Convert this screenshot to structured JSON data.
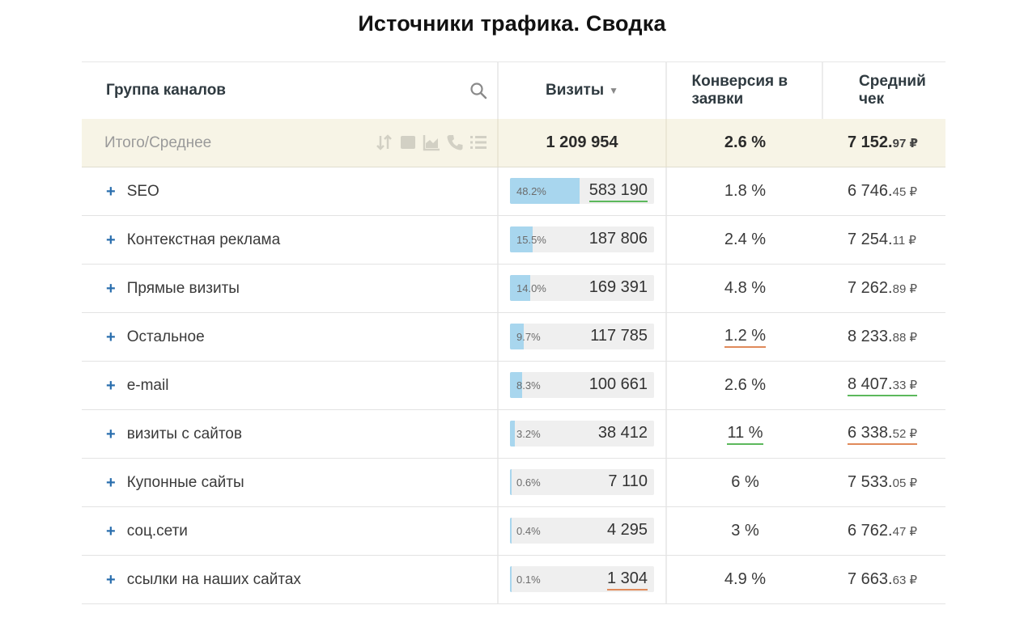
{
  "title": "Источники трафика. Сводка",
  "header": {
    "group": "Группа каналов",
    "visits": "Визиты",
    "visits_sort": "▼",
    "conversion": "Конверсия в заявки",
    "avg_check": "Средний чек"
  },
  "total": {
    "label": "Итого/Среднее",
    "visits": "1 209 954",
    "conversion": "2.6 %",
    "avg_main": "7 152.",
    "avg_cents": "97 ₽"
  },
  "rows": [
    {
      "name": "SEO",
      "pct": "48.2%",
      "pct_value": 0.482,
      "visits": "583 190",
      "visits_mark": "green",
      "conversion": "1.8 %",
      "conv_mark": "",
      "avg_main": "6 746.",
      "avg_cents": "45 ₽",
      "avg_mark": ""
    },
    {
      "name": "Контекстная реклама",
      "pct": "15.5%",
      "pct_value": 0.155,
      "visits": "187 806",
      "visits_mark": "",
      "conversion": "2.4 %",
      "conv_mark": "",
      "avg_main": "7 254.",
      "avg_cents": "11 ₽",
      "avg_mark": ""
    },
    {
      "name": "Прямые визиты",
      "pct": "14.0%",
      "pct_value": 0.14,
      "visits": "169 391",
      "visits_mark": "",
      "conversion": "4.8 %",
      "conv_mark": "",
      "avg_main": "7 262.",
      "avg_cents": "89 ₽",
      "avg_mark": ""
    },
    {
      "name": "Остальное",
      "pct": "9.7%",
      "pct_value": 0.097,
      "visits": "117 785",
      "visits_mark": "",
      "conversion": "1.2 %",
      "conv_mark": "red",
      "avg_main": "8 233.",
      "avg_cents": "88 ₽",
      "avg_mark": ""
    },
    {
      "name": "e-mail",
      "pct": "8.3%",
      "pct_value": 0.083,
      "visits": "100 661",
      "visits_mark": "",
      "conversion": "2.6 %",
      "conv_mark": "",
      "avg_main": "8 407.",
      "avg_cents": "33 ₽",
      "avg_mark": "green"
    },
    {
      "name": "визиты с сайтов",
      "pct": "3.2%",
      "pct_value": 0.032,
      "visits": "38 412",
      "visits_mark": "",
      "conversion": "11 %",
      "conv_mark": "green",
      "avg_main": "6 338.",
      "avg_cents": "52 ₽",
      "avg_mark": "red"
    },
    {
      "name": "Купонные сайты",
      "pct": "0.6%",
      "pct_value": 0.006,
      "visits": "7 110",
      "visits_mark": "",
      "conversion": "6 %",
      "conv_mark": "",
      "avg_main": "7 533.",
      "avg_cents": "05 ₽",
      "avg_mark": ""
    },
    {
      "name": "соц.сети",
      "pct": "0.4%",
      "pct_value": 0.004,
      "visits": "4 295",
      "visits_mark": "",
      "conversion": "3 %",
      "conv_mark": "",
      "avg_main": "6 762.",
      "avg_cents": "47 ₽",
      "avg_mark": ""
    },
    {
      "name": "ссылки на наших сайтах",
      "pct": "0.1%",
      "pct_value": 0.001,
      "visits": "1 304",
      "visits_mark": "red",
      "conversion": "4.9 %",
      "conv_mark": "",
      "avg_main": "7 663.",
      "avg_cents": "63 ₽",
      "avg_mark": ""
    }
  ],
  "colors": {
    "bar_fill": "#a8d6ee",
    "bar_track": "#efefef",
    "plus": "#2b6fae",
    "good_underline": "#5cb85c",
    "bad_underline": "#e08a5a",
    "total_bg": "#f7f4e6"
  },
  "icons": {
    "header_search": "search-icon",
    "total_toolbar": [
      "sort-icon",
      "bar-chart-icon",
      "area-chart-icon",
      "phone-icon",
      "list-icon"
    ]
  }
}
